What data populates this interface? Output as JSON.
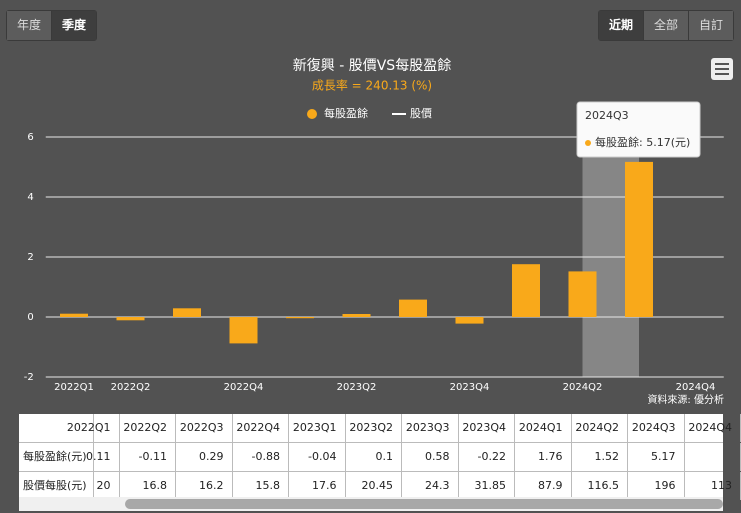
{
  "buttons_left": [
    "年度",
    "季度"
  ],
  "buttons_right": [
    "近期",
    "全部",
    "自訂"
  ],
  "chart_data": {
    "type": "bar",
    "title": "新復興 - 股價VS每股盈餘",
    "subtitle": "成長率 = 240.13 (%)",
    "categories": [
      "2022Q1",
      "2022Q2",
      null,
      "2022Q4",
      null,
      "2023Q2",
      null,
      "2023Q4",
      null,
      "2024Q2",
      null,
      "2024Q4"
    ],
    "series": [
      {
        "name": "每股盈餘",
        "color": "#f9a91a",
        "values": [
          0.11,
          -0.11,
          0.29,
          -0.88,
          -0.04,
          0.1,
          0.58,
          -0.22,
          1.76,
          1.52,
          5.17,
          null
        ]
      },
      {
        "name": "股價",
        "color": "#ffffff"
      }
    ],
    "ylim": [
      -2,
      6
    ],
    "yticks": [
      -2,
      0,
      2,
      4,
      6
    ],
    "grid": true
  },
  "tooltip": {
    "title": "2024Q3",
    "text": "每股盈餘: 5.17(元)"
  },
  "source": "資料來源: 優分析",
  "table": {
    "header": [
      "2022Q1",
      "2022Q2",
      "2022Q3",
      "2022Q4",
      "2023Q1",
      "2023Q2",
      "2023Q3",
      "2023Q4",
      "2024Q1",
      "2024Q2",
      "2024Q3",
      "2024Q4"
    ],
    "rows": [
      {
        "label": "每股盈餘(元)",
        "cells": [
          0.11,
          -0.11,
          0.29,
          -0.88,
          -0.04,
          0.1,
          0.58,
          -0.22,
          1.76,
          1.52,
          5.17,
          null
        ]
      },
      {
        "label": "股價每股(元)",
        "cells": [
          20,
          16.8,
          16.2,
          15.8,
          17.6,
          20.45,
          24.3,
          31.85,
          87.9,
          116.5,
          196,
          113
        ]
      }
    ]
  }
}
